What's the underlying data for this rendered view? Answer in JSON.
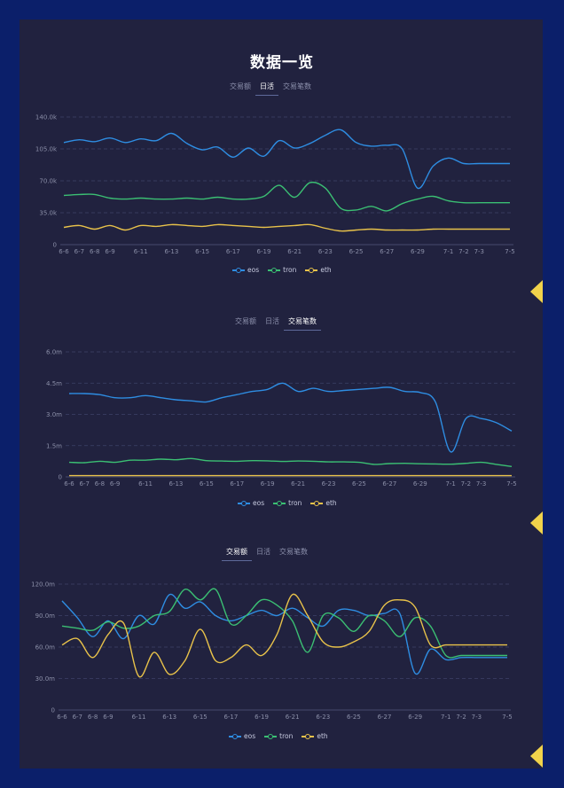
{
  "page": {
    "title": "数据一览",
    "tabs": [
      "交易额",
      "日活",
      "交易笔数"
    ],
    "colors": {
      "eos": "#2e8de2",
      "tron": "#3bbf73",
      "eth": "#e8c24a",
      "grid": "#3e4268",
      "bg": "#21223f",
      "frame": "#0b1f6a",
      "accent": "#f1d34b"
    }
  },
  "chart_data": [
    {
      "type": "line",
      "active_tab": "日活",
      "categories": [
        "6-6",
        "6-7",
        "6-8",
        "6-9",
        "6-10",
        "6-11",
        "6-12",
        "6-13",
        "6-14",
        "6-15",
        "6-16",
        "6-17",
        "6-18",
        "6-19",
        "6-20",
        "6-21",
        "6-22",
        "6-23",
        "6-24",
        "6-25",
        "6-26",
        "6-27",
        "6-28",
        "6-29",
        "6-30",
        "7-1",
        "7-2",
        "7-3",
        "7-4",
        "7-5"
      ],
      "tick_labels": [
        "6-6",
        "6-7",
        "6-8",
        "6-9",
        "6-11",
        "6-13",
        "6-15",
        "6-17",
        "6-19",
        "6-21",
        "6-23",
        "6-25",
        "6-27",
        "6-29",
        "7-1",
        "7-2",
        "7-3",
        "7-5"
      ],
      "yticks": [
        "0",
        "35.0k",
        "70.0k",
        "105.0k",
        "140.0k"
      ],
      "ylim": [
        0,
        140000
      ],
      "legend_position": "bottom",
      "series": [
        {
          "name": "eos",
          "values": [
            112000,
            115000,
            113000,
            117000,
            112000,
            116000,
            114000,
            122000,
            111000,
            104000,
            107000,
            96000,
            106000,
            97000,
            114000,
            106000,
            111000,
            120000,
            126000,
            112000,
            108000,
            109000,
            105000,
            62000,
            86000,
            95000,
            89000,
            89000,
            89000,
            89000
          ]
        },
        {
          "name": "tron",
          "values": [
            54000,
            55000,
            55000,
            51000,
            50000,
            51000,
            50000,
            50000,
            51000,
            50000,
            52000,
            50000,
            50000,
            53000,
            65000,
            52000,
            68000,
            62000,
            40000,
            38000,
            42000,
            37000,
            45000,
            50000,
            53000,
            48000,
            46000,
            46000,
            46000,
            46000
          ]
        },
        {
          "name": "eth",
          "values": [
            19000,
            21000,
            17000,
            21000,
            16000,
            21000,
            20000,
            22000,
            21000,
            20000,
            22000,
            21000,
            20000,
            19000,
            20000,
            21000,
            22000,
            18000,
            15000,
            16000,
            17000,
            16000,
            16000,
            16000,
            17000,
            17000,
            17000,
            17000,
            17000,
            17000
          ]
        }
      ]
    },
    {
      "type": "line",
      "active_tab": "交易笔数",
      "categories": [
        "6-6",
        "6-7",
        "6-8",
        "6-9",
        "6-10",
        "6-11",
        "6-12",
        "6-13",
        "6-14",
        "6-15",
        "6-16",
        "6-17",
        "6-18",
        "6-19",
        "6-20",
        "6-21",
        "6-22",
        "6-23",
        "6-24",
        "6-25",
        "6-26",
        "6-27",
        "6-28",
        "6-29",
        "6-30",
        "7-1",
        "7-2",
        "7-3",
        "7-4",
        "7-5"
      ],
      "tick_labels": [
        "6-6",
        "6-7",
        "6-8",
        "6-9",
        "6-11",
        "6-13",
        "6-15",
        "6-17",
        "6-19",
        "6-21",
        "6-23",
        "6-25",
        "6-27",
        "6-29",
        "7-1",
        "7-2",
        "7-3",
        "7-5"
      ],
      "yticks": [
        "0",
        "1.5m",
        "3.0m",
        "4.5m",
        "6.0m"
      ],
      "ylim": [
        0,
        6000000
      ],
      "legend_position": "bottom",
      "series": [
        {
          "name": "eos",
          "values": [
            4000000,
            4000000,
            3950000,
            3800000,
            3800000,
            3900000,
            3800000,
            3700000,
            3650000,
            3600000,
            3800000,
            3950000,
            4100000,
            4200000,
            4500000,
            4100000,
            4250000,
            4100000,
            4150000,
            4200000,
            4250000,
            4300000,
            4100000,
            4050000,
            3600000,
            1200000,
            2800000,
            2800000,
            2600000,
            2200000
          ]
        },
        {
          "name": "tron",
          "values": [
            700000,
            680000,
            750000,
            700000,
            800000,
            800000,
            850000,
            820000,
            880000,
            780000,
            760000,
            750000,
            780000,
            770000,
            740000,
            760000,
            750000,
            720000,
            720000,
            700000,
            600000,
            640000,
            650000,
            630000,
            620000,
            610000,
            650000,
            700000,
            600000,
            500000
          ]
        },
        {
          "name": "eth",
          "values": [
            60000,
            60000,
            60000,
            60000,
            60000,
            60000,
            60000,
            60000,
            60000,
            60000,
            60000,
            60000,
            60000,
            60000,
            60000,
            60000,
            60000,
            60000,
            60000,
            60000,
            60000,
            60000,
            60000,
            60000,
            60000,
            60000,
            60000,
            60000,
            60000,
            60000
          ]
        }
      ]
    },
    {
      "type": "line",
      "active_tab": "交易额",
      "categories": [
        "6-6",
        "6-7",
        "6-8",
        "6-9",
        "6-10",
        "6-11",
        "6-12",
        "6-13",
        "6-14",
        "6-15",
        "6-16",
        "6-17",
        "6-18",
        "6-19",
        "6-20",
        "6-21",
        "6-22",
        "6-23",
        "6-24",
        "6-25",
        "6-26",
        "6-27",
        "6-28",
        "6-29",
        "6-30",
        "7-1",
        "7-2",
        "7-3",
        "7-4",
        "7-5"
      ],
      "tick_labels": [
        "6-6",
        "6-7",
        "6-8",
        "6-9",
        "6-11",
        "6-13",
        "6-15",
        "6-17",
        "6-19",
        "6-21",
        "6-23",
        "6-25",
        "6-27",
        "6-29",
        "7-1",
        "7-2",
        "7-3",
        "7-5"
      ],
      "yticks": [
        "0",
        "30.0m",
        "60.0m",
        "90.0m",
        "120.0m"
      ],
      "ylim": [
        0,
        120000000
      ],
      "legend_position": "bottom",
      "series": [
        {
          "name": "eos",
          "values": [
            104000000,
            88000000,
            70000000,
            85000000,
            68000000,
            90000000,
            82000000,
            110000000,
            97000000,
            103000000,
            90000000,
            85000000,
            90000000,
            95000000,
            90000000,
            97000000,
            88000000,
            80000000,
            95000000,
            95000000,
            90000000,
            92000000,
            92000000,
            35000000,
            58000000,
            48000000,
            50000000,
            50000000,
            50000000,
            50000000
          ]
        },
        {
          "name": "tron",
          "values": [
            80000000,
            78000000,
            76000000,
            84000000,
            78000000,
            80000000,
            90000000,
            94000000,
            115000000,
            105000000,
            115000000,
            82000000,
            90000000,
            105000000,
            100000000,
            85000000,
            55000000,
            90000000,
            88000000,
            75000000,
            90000000,
            85000000,
            70000000,
            88000000,
            80000000,
            52000000,
            52000000,
            52000000,
            52000000,
            52000000
          ]
        },
        {
          "name": "eth",
          "values": [
            62000000,
            68000000,
            50000000,
            72000000,
            83000000,
            32000000,
            55000000,
            34000000,
            47000000,
            77000000,
            47000000,
            50000000,
            62000000,
            52000000,
            72000000,
            110000000,
            90000000,
            65000000,
            60000000,
            65000000,
            75000000,
            100000000,
            105000000,
            98000000,
            62000000,
            62000000,
            62000000,
            62000000,
            62000000,
            62000000
          ]
        }
      ]
    }
  ]
}
